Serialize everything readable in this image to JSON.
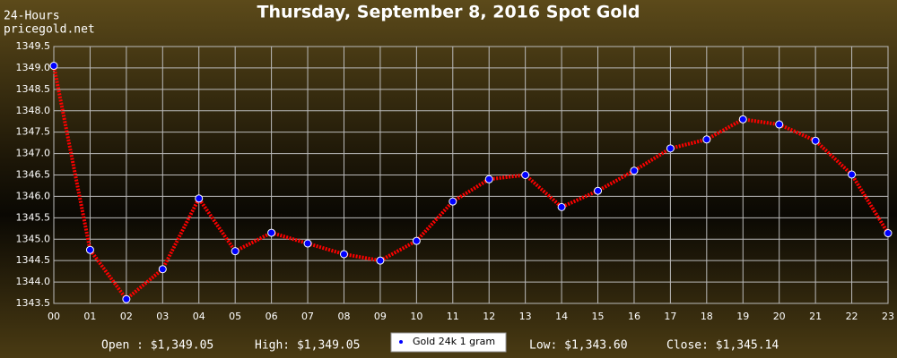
{
  "chart_data": {
    "type": "line",
    "title": "Thursday, September 8, 2016 Spot Gold",
    "corner_labels": [
      "24-Hours",
      "pricegold.net"
    ],
    "categories": [
      "00",
      "01",
      "02",
      "03",
      "04",
      "05",
      "06",
      "07",
      "08",
      "09",
      "10",
      "11",
      "12",
      "13",
      "14",
      "15",
      "16",
      "17",
      "18",
      "19",
      "20",
      "21",
      "22",
      "23"
    ],
    "series": [
      {
        "name": "Gold 24k 1 gram",
        "color": "#ff0000",
        "marker_color": "#0000ff",
        "values": [
          1349.05,
          1344.75,
          1343.6,
          1344.3,
          1345.95,
          1344.72,
          1345.15,
          1344.9,
          1344.65,
          1344.5,
          1344.96,
          1345.88,
          1346.4,
          1346.5,
          1345.75,
          1346.13,
          1346.6,
          1347.12,
          1347.33,
          1347.8,
          1347.68,
          1347.3,
          1346.51,
          1345.14
        ]
      }
    ],
    "ylim": [
      1343.5,
      1349.5
    ],
    "yticks": [
      1343.5,
      {
        "value": 1344,
        "label": "1344.0"
      },
      1344.5,
      {
        "value": 1345,
        "label": "1345.0"
      },
      1345.5,
      {
        "value": 1346,
        "label": "1346.0"
      },
      1346.5,
      {
        "value": 1347,
        "label": "1347.0"
      },
      1347.5,
      {
        "value": 1348,
        "label": "1348.0"
      },
      1348.5,
      {
        "value": 1349,
        "label": "1349.0"
      },
      1349.5
    ],
    "grid": true,
    "stats": [
      "Open : $1,349.05",
      "High: $1,349.05",
      "Low: $1,343.60",
      "Close: $1,345.14"
    ]
  }
}
